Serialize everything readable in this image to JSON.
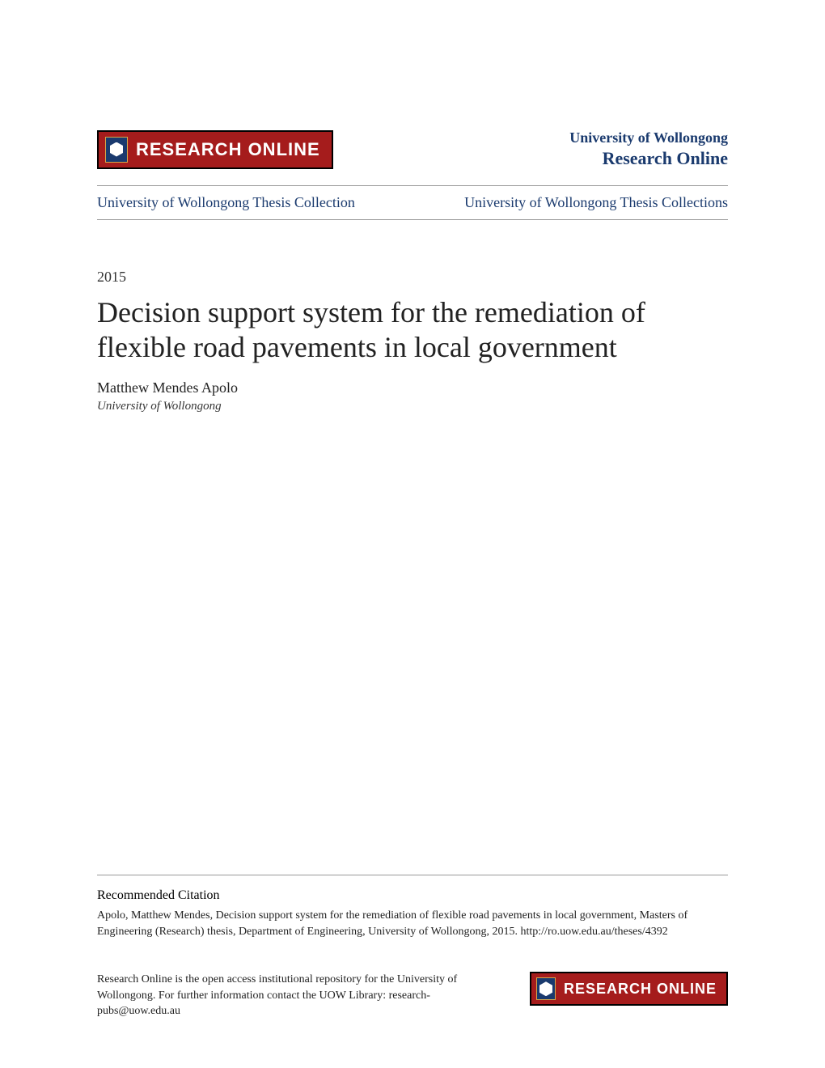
{
  "header": {
    "logo_banner_text": "RESEARCH ONLINE",
    "university_name": "University of Wollongong",
    "site_name": "Research Online",
    "banner_bg_color": "#a51c1c",
    "shield_bg_color": "#1a3a6e",
    "text_color": "#1a3a6e"
  },
  "nav": {
    "left_link": "University of Wollongong Thesis Collection",
    "right_link": "University of Wollongong Thesis Collections"
  },
  "document": {
    "year": "2015",
    "title": "Decision support system for the remediation of flexible road pavements in local government",
    "author": "Matthew Mendes Apolo",
    "affiliation": "University of Wollongong"
  },
  "citation": {
    "heading": "Recommended Citation",
    "text": "Apolo, Matthew Mendes, Decision support system for the remediation of flexible road pavements in local government, Masters of Engineering (Research) thesis, Department of Engineering, University of Wollongong, 2015. http://ro.uow.edu.au/theses/4392"
  },
  "footer": {
    "disclaimer": "Research Online is the open access institutional repository for the University of Wollongong. For further information contact the UOW Library: research-pubs@uow.edu.au",
    "logo_text": "RESEARCH ONLINE"
  }
}
